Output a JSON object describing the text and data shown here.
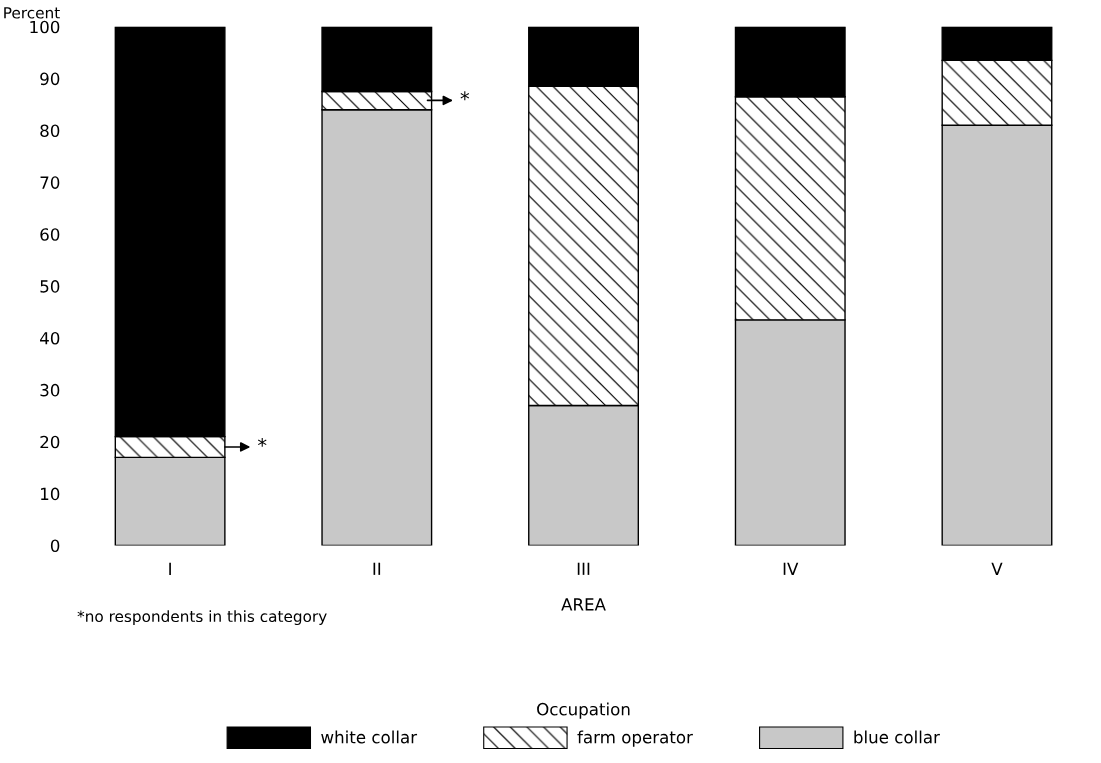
{
  "chart_data": {
    "type": "bar",
    "stacked": true,
    "xlabel": "AREA",
    "ylabel": "Percent",
    "legend_title": "Occupation",
    "legend": "bottom",
    "categories": [
      "I",
      "II",
      "III",
      "IV",
      "V"
    ],
    "series": [
      {
        "name": "blue collar",
        "color": "#c8c8c8",
        "values": [
          17,
          84,
          27,
          43.5,
          81
        ]
      },
      {
        "name": "farm operator",
        "color": "#ffffff",
        "values": [
          4,
          3.5,
          61.5,
          43,
          12.5
        ]
      },
      {
        "name": "white collar",
        "color": "#000000",
        "values": [
          79,
          12.5,
          11.5,
          13.5,
          6.5
        ]
      }
    ],
    "ylim": [
      0,
      100
    ],
    "yticks": [
      0,
      10,
      20,
      30,
      40,
      50,
      60,
      70,
      80,
      90,
      100
    ],
    "grid": false,
    "annotations": [
      "*",
      "*",
      "*no respondents in this category"
    ]
  }
}
